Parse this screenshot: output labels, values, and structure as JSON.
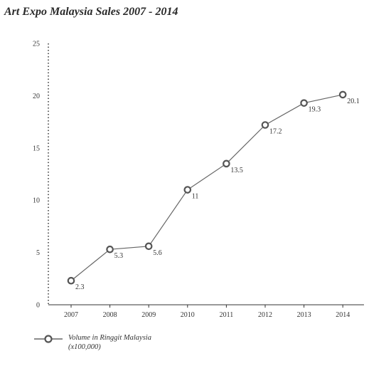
{
  "title": "Art Expo Malaysia Sales 2007 - 2014",
  "legend_label": "Volume in Ringgit Malaysia (x100,000)",
  "colors": {
    "line": "#666666",
    "marker_stroke": "#555555",
    "axis": "#333333"
  },
  "chart_data": {
    "type": "line",
    "title": "Art Expo Malaysia Sales 2007 - 2014",
    "categories": [
      "2007",
      "2008",
      "2009",
      "2010",
      "2011",
      "2012",
      "2013",
      "2014"
    ],
    "series": [
      {
        "name": "Volume in Ringgit Malaysia (x100,000)",
        "values": [
          2.3,
          5.3,
          5.6,
          11,
          13.5,
          17.2,
          19.3,
          20.1
        ],
        "labels": [
          "2.3",
          "5.3",
          "5.6",
          "11",
          "13.5",
          "17.2",
          "19.3",
          "20.1"
        ]
      }
    ],
    "yticks": [
      "0",
      "5",
      "10",
      "15",
      "20",
      "25"
    ],
    "ylim": [
      0,
      25
    ],
    "xlabel": "",
    "ylabel": "",
    "grid": false,
    "legend_position": "bottom-left"
  }
}
